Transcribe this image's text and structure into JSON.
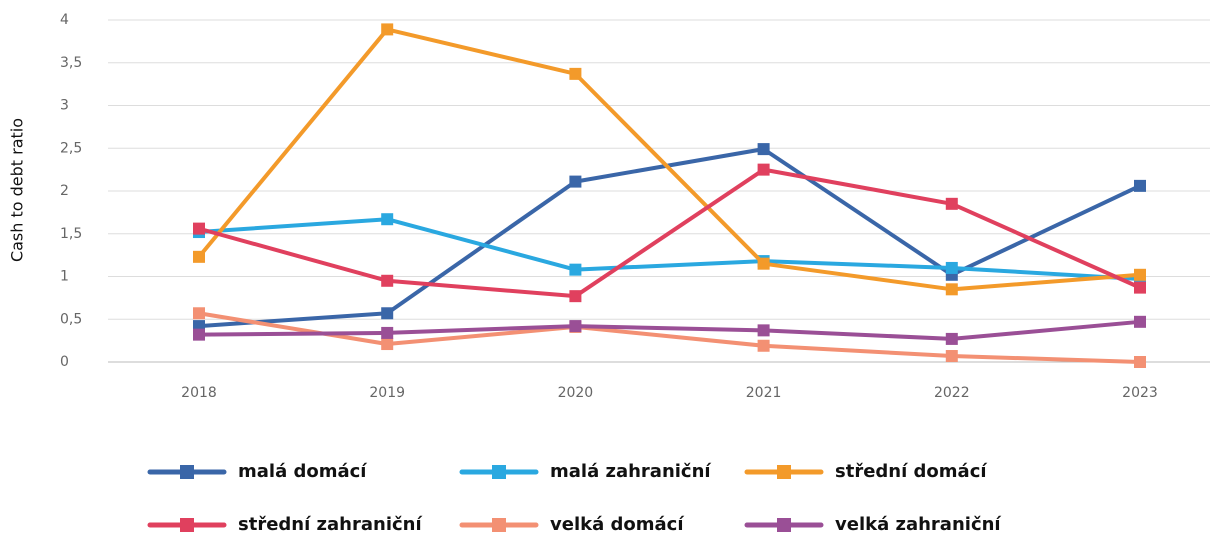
{
  "chart_data": {
    "type": "line",
    "y_label": "Cash to debt ratio",
    "categories": [
      "2018",
      "2019",
      "2020",
      "2021",
      "2022",
      "2023"
    ],
    "series": [
      {
        "name": "malá domácí",
        "color": "#3a66a8",
        "values": [
          0.42,
          0.57,
          2.11,
          2.49,
          1.02,
          2.06
        ]
      },
      {
        "name": "malá zahraniční",
        "color": "#2aa8e0",
        "values": [
          1.52,
          1.67,
          1.08,
          1.18,
          1.1,
          0.97
        ]
      },
      {
        "name": "střední domácí",
        "color": "#f39a2a",
        "values": [
          1.23,
          3.89,
          3.37,
          1.15,
          0.85,
          1.02
        ]
      },
      {
        "name": "střední zahraniční",
        "color": "#e0405e",
        "values": [
          1.56,
          0.95,
          0.77,
          2.25,
          1.85,
          0.87
        ]
      },
      {
        "name": "velká domácí",
        "color": "#f39073",
        "values": [
          0.57,
          0.21,
          0.41,
          0.19,
          0.07,
          0.0
        ]
      },
      {
        "name": "velká zahraniční",
        "color": "#9a4f96",
        "values": [
          0.32,
          0.34,
          0.42,
          0.37,
          0.27,
          0.47
        ]
      }
    ],
    "ylim": [
      0,
      4
    ],
    "yticks": [
      0,
      {
        "value": 0.5,
        "label": "0,5"
      },
      1,
      {
        "value": 1.5,
        "label": "1,5"
      },
      2,
      {
        "value": 2.5,
        "label": "2,5"
      },
      3,
      {
        "value": 3.5,
        "label": "3,5"
      },
      4
    ],
    "grid": true
  }
}
